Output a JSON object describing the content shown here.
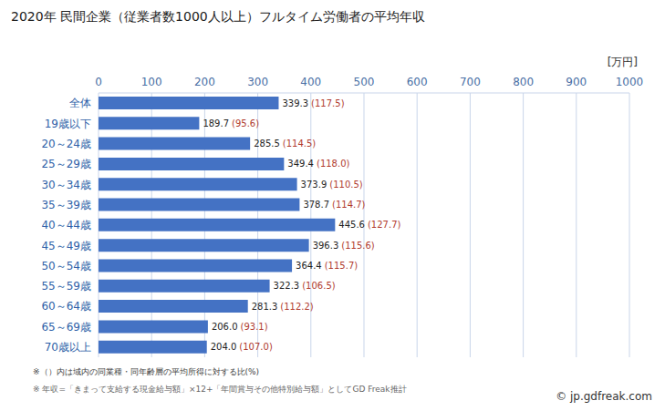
{
  "chart_data": {
    "type": "bar",
    "title": "2020年 民間企業（従業者数1000人以上）フルタイム労働者の平均年収",
    "unit_label": "[万円]",
    "categories": [
      "全体",
      "19歳以下",
      "20～24歳",
      "25～29歳",
      "30～34歳",
      "35～39歳",
      "40～44歳",
      "45～49歳",
      "50～54歳",
      "55～59歳",
      "60～64歳",
      "65～69歳",
      "70歳以上"
    ],
    "values": [
      339.3,
      189.7,
      285.5,
      349.4,
      373.9,
      378.7,
      445.6,
      396.3,
      364.4,
      322.3,
      281.3,
      206.0,
      204.0
    ],
    "value_labels": [
      "339.3",
      "189.7",
      "285.5",
      "349.4",
      "373.9",
      "378.7",
      "445.6",
      "396.3",
      "364.4",
      "322.3",
      "281.3",
      "206.0",
      "204.0"
    ],
    "ratio_labels": [
      "(117.5)",
      "(95.6)",
      "(114.5)",
      "(118.0)",
      "(110.5)",
      "(114.7)",
      "(127.7)",
      "(115.6)",
      "(115.7)",
      "(106.5)",
      "(112.2)",
      "(93.1)",
      "(107.0)"
    ],
    "color": "#4472c4",
    "orientation": "horizontal",
    "xlim": [
      0,
      1000
    ],
    "xticks": [
      0,
      100,
      200,
      300,
      400,
      500,
      600,
      700,
      800,
      900,
      1000
    ],
    "grid": true,
    "data_labels": true,
    "notes": [
      "※（）内は域内の同業種・同年齢層の平均所得に対する比(%)",
      "※ 年収=「きまって支給する現金給与額」×12+「年間賞与その他特別給与額」としてGD Freak推計"
    ],
    "source": "© jp.gdfreak.com"
  }
}
